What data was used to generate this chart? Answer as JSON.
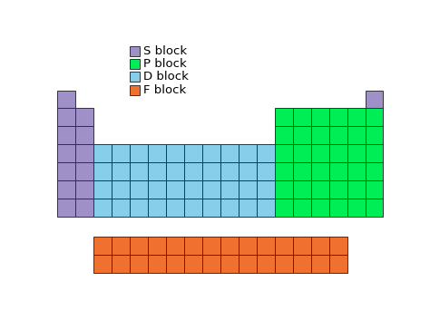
{
  "colors": {
    "S": "#a090c8",
    "P": "#00ee55",
    "D": "#87ceeb",
    "F": "#f07030"
  },
  "legend": [
    {
      "label": "S block",
      "color": "#a090c8"
    },
    {
      "label": "P block",
      "color": "#00ee55"
    },
    {
      "label": "D block",
      "color": "#87ceeb"
    },
    {
      "label": "F block",
      "color": "#f07030"
    }
  ],
  "background": "#ffffff",
  "edge_color": "#333333",
  "edge_lw": 0.7,
  "fig_width": 4.74,
  "fig_height": 3.64,
  "dpi": 100,
  "n_cols": 18,
  "n_rows": 7,
  "f_cols": 14,
  "f_rows": 2
}
